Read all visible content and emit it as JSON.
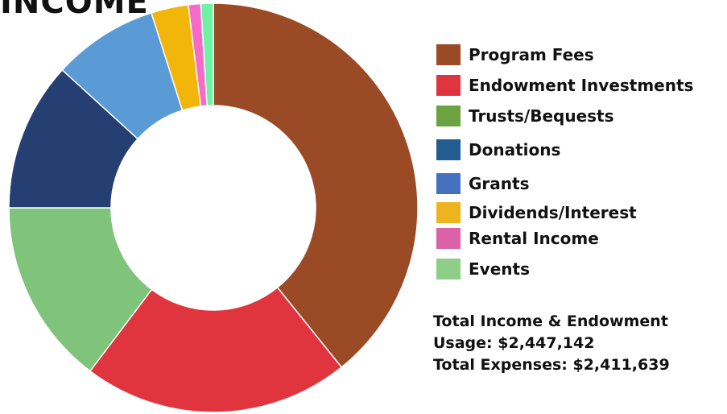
{
  "chart_data": {
    "type": "pie",
    "title": "INCOME",
    "donut": true,
    "legend_position": "right",
    "series": [
      {
        "name": "Program Fees",
        "value": 40.0,
        "color": "#9A4A24"
      },
      {
        "name": "Endowment Investments",
        "value": 21.5,
        "color": "#E0353F"
      },
      {
        "name": "Trusts/Bequests",
        "value": 15.0,
        "color": "#7FC47A"
      },
      {
        "name": "Donations",
        "value": 12.0,
        "color": "#253F73"
      },
      {
        "name": "Grants",
        "value": 8.5,
        "color": "#5B9BD5"
      },
      {
        "name": "Dividends/Interest",
        "value": 3.0,
        "color": "#F2B50A"
      },
      {
        "name": "Rental Income",
        "value": 1.0,
        "color": "#F56CC8"
      },
      {
        "name": "Events",
        "value": 1.0,
        "color": "#6EF2A3"
      }
    ]
  },
  "legend": [
    {
      "label": "Program Fees",
      "color": "#9A4A24"
    },
    {
      "label": "Endowment Investments",
      "color": "#E0353F"
    },
    {
      "label": "Trusts/Bequests",
      "color": "#6BA343"
    },
    {
      "label": "Donations",
      "color": "#235C8F"
    },
    {
      "label": "Grants",
      "color": "#4571C0"
    },
    {
      "label": "Dividends/Interest",
      "color": "#EEB41E"
    },
    {
      "label": "Rental Income",
      "color": "#DA63A8"
    },
    {
      "label": "Events",
      "color": "#8ECF87"
    }
  ],
  "totals": {
    "line1": "Total Income & Endowment",
    "line2": "Usage: $2,447,142",
    "line3": "Total Expenses: $2,411,639"
  }
}
